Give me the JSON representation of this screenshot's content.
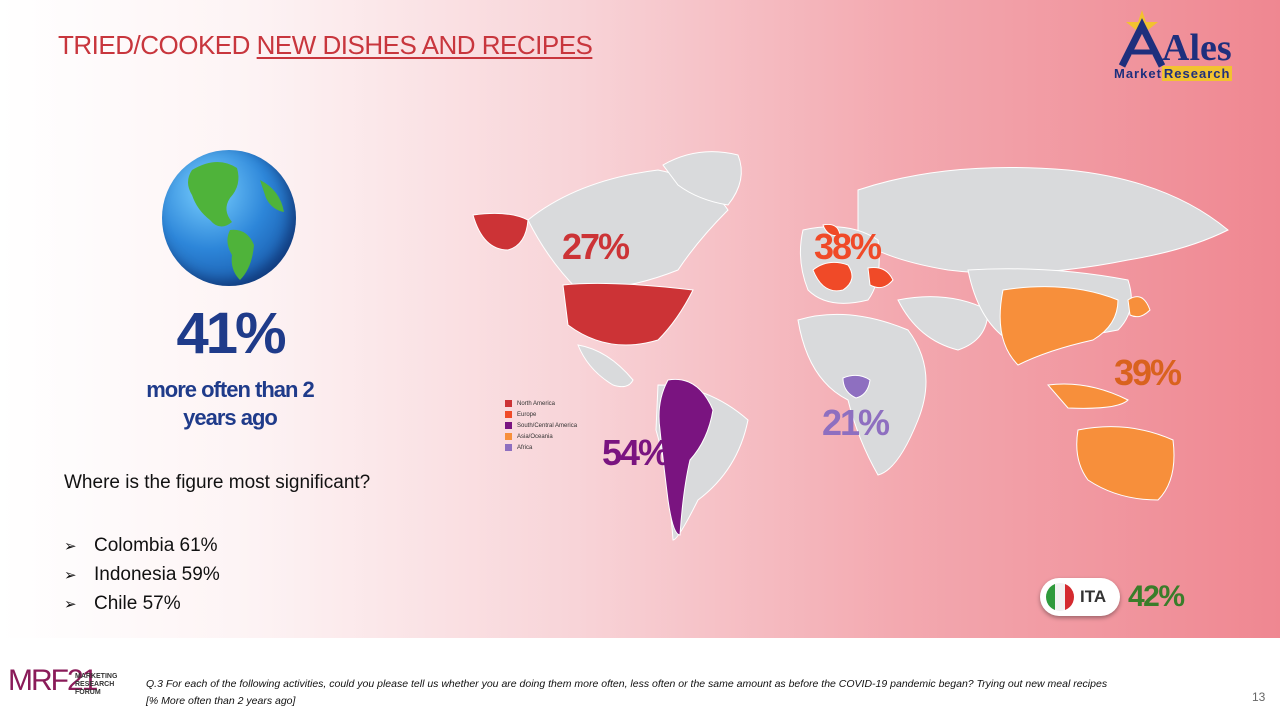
{
  "title_part1": "TRIED/COOKED ",
  "title_part2": "NEW DISHES AND RECIPES",
  "logo": {
    "name": "Ales",
    "sub1": "Market",
    "sub2": "Research"
  },
  "global": {
    "pct": "41%",
    "label": "more often than 2 years ago"
  },
  "question": "Where is the figure most significant?",
  "top_countries": [
    "Colombia 61%",
    "Indonesia 59%",
    "Chile 57%"
  ],
  "regions": [
    {
      "name": "North America",
      "pct": "27%",
      "color": "#cc3336"
    },
    {
      "name": "Europe",
      "pct": "38%",
      "color": "#f04a28"
    },
    {
      "name": "South/Central America",
      "pct": "54%",
      "color": "#7a1480"
    },
    {
      "name": "Asia/Oceania",
      "pct": "39%",
      "color": "#f78f3b"
    },
    {
      "name": "Africa",
      "pct": "21%",
      "color": "#8e6fc0"
    }
  ],
  "italy": {
    "code": "ITA",
    "pct": "42%"
  },
  "footer": {
    "brand": "MRF21",
    "brand_sub": "MARKETING RESEARCH FORUM",
    "note_line1": "Q.3 For each of the following activities, could you please tell us whether you are doing them more often, less often or the same amount as before the COVID-19 pandemic began? Trying out new meal recipes",
    "note_line2": "[% More often than 2 years ago]",
    "page": "13"
  }
}
